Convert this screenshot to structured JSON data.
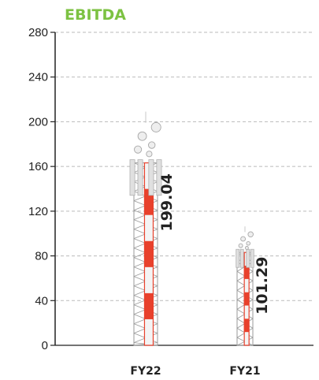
{
  "chart_data": {
    "type": "bar",
    "title": "EBITDA",
    "categories": [
      "FY22",
      "FY21"
    ],
    "values": [
      199.04,
      101.29
    ],
    "data_labels": [
      "199.04",
      "101.29"
    ],
    "ylim": [
      0,
      280
    ],
    "yticks": [
      0,
      40,
      80,
      120,
      160,
      200,
      240,
      280
    ],
    "grid": true,
    "bar_style": "telecom-tower",
    "colors": {
      "title": "#7cc242",
      "stripe_red": "#e8412c",
      "stripe_white": "#f4f4f4",
      "lattice": "#9a9a9a",
      "grid": "#bbbbbb",
      "axis": "#222222"
    }
  }
}
